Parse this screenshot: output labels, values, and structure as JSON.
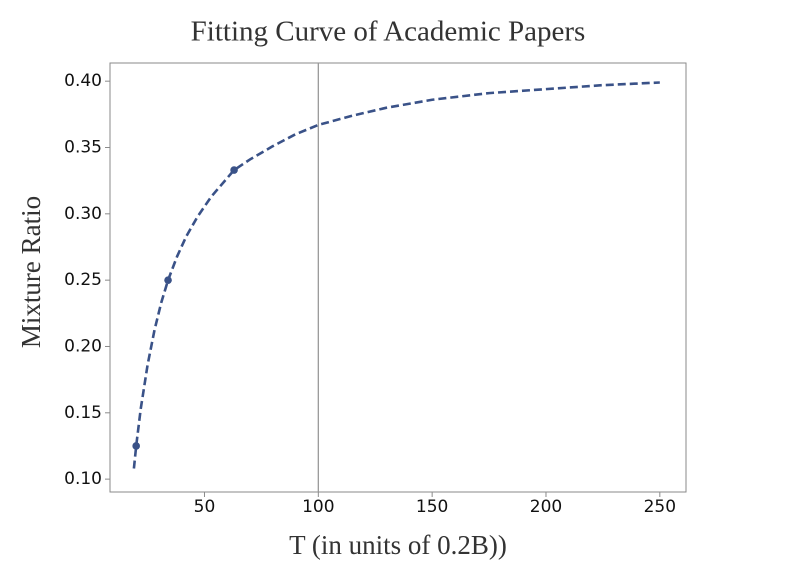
{
  "chart_data": {
    "type": "line",
    "title": "Fitting Curve of Academic Papers",
    "x_label": "T (in units of 0.2B))",
    "y_label": "Mixture Ratio",
    "color": "#3a5288",
    "curve": {
      "style": "dashed",
      "x": [
        19,
        20,
        22,
        25,
        28,
        31,
        34,
        38,
        42,
        47,
        53,
        63,
        70,
        80,
        90,
        100,
        115,
        130,
        150,
        175,
        200,
        225,
        250
      ],
      "values": [
        0.108,
        0.125,
        0.153,
        0.186,
        0.212,
        0.233,
        0.25,
        0.268,
        0.283,
        0.298,
        0.313,
        0.333,
        0.341,
        0.351,
        0.36,
        0.367,
        0.374,
        0.38,
        0.386,
        0.391,
        0.394,
        0.397,
        0.399
      ]
    },
    "points": {
      "x": [
        20,
        34,
        63
      ],
      "values": [
        0.125,
        0.25,
        0.333
      ]
    },
    "vline": {
      "x": 100,
      "color": "#999999"
    },
    "xlim": [
      8.5,
      261.5
    ],
    "ylim": [
      0.0903,
      0.4137
    ],
    "xticks": [
      50,
      100,
      150,
      200,
      250
    ],
    "yticks": [
      {
        "value": 0.1,
        "label": "0.10"
      },
      {
        "value": 0.15,
        "label": "0.15"
      },
      {
        "value": 0.2,
        "label": "0.20"
      },
      {
        "value": 0.25,
        "label": "0.25"
      },
      {
        "value": 0.3,
        "label": "0.30"
      },
      {
        "value": 0.35,
        "label": "0.35"
      },
      {
        "value": 0.4,
        "label": "0.40"
      }
    ]
  }
}
